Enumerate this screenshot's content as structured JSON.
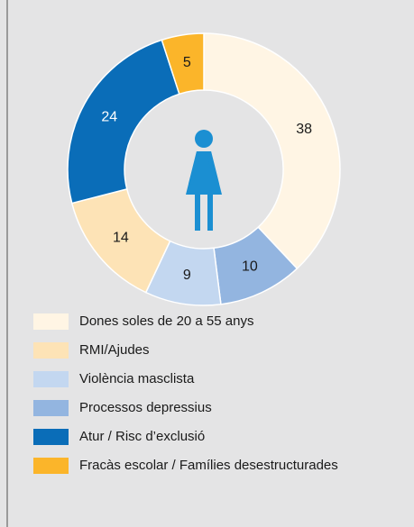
{
  "chart_data": {
    "type": "donut",
    "categories": [
      "Dones soles de 20 a 55 anys",
      "RMI/Ajudes",
      "Violència masclista",
      "Processos depressius",
      "Atur / Risc d’exclusió",
      "Fracàs escolar / Famílies desestructurades"
    ],
    "values": [
      38,
      14,
      9,
      10,
      24,
      5
    ],
    "colors": [
      "#fff5e4",
      "#fde3b6",
      "#c3d7f0",
      "#93b5e0",
      "#0a6db8",
      "#fbb52a"
    ]
  }
}
